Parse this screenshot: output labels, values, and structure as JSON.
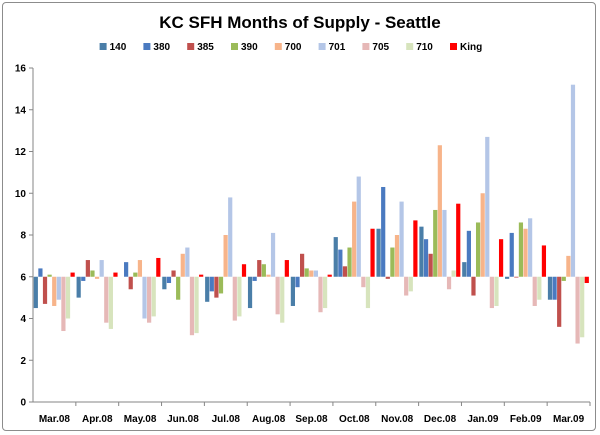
{
  "chart_data": {
    "type": "bar",
    "title": "KC SFH Months of Supply - Seattle",
    "xlabel": "",
    "ylabel": "",
    "ylim": [
      0,
      16
    ],
    "yticks": [
      0,
      2,
      4,
      6,
      8,
      10,
      12,
      14,
      16
    ],
    "baseline": 6,
    "grid": false,
    "legend_position": "top",
    "categories": [
      "Mar.08",
      "Apr.08",
      "May.08",
      "Jun.08",
      "Jul.08",
      "Aug.08",
      "Sep.08",
      "Oct.08",
      "Nov.08",
      "Dec.08",
      "Jan.09",
      "Feb.09",
      "Mar.09"
    ],
    "series": [
      {
        "name": "140",
        "color": "#4a7ea8",
        "values": [
          4.5,
          5.0,
          null,
          5.4,
          4.8,
          4.5,
          4.6,
          7.9,
          8.3,
          8.4,
          6.7,
          5.9,
          4.9
        ]
      },
      {
        "name": "380",
        "color": "#4a7ac0",
        "values": [
          6.4,
          5.8,
          6.7,
          5.7,
          5.3,
          5.8,
          5.5,
          7.3,
          10.3,
          7.8,
          8.2,
          8.1,
          4.9
        ]
      },
      {
        "name": "385",
        "color": "#c0504d",
        "values": [
          4.7,
          6.8,
          5.4,
          6.3,
          5.0,
          6.8,
          7.1,
          6.5,
          5.9,
          7.1,
          5.1,
          6.0,
          3.6
        ]
      },
      {
        "name": "390",
        "color": "#9bbb59",
        "values": [
          6.1,
          6.3,
          6.2,
          4.9,
          5.2,
          6.6,
          6.4,
          7.4,
          7.4,
          9.2,
          8.6,
          8.6,
          5.8
        ]
      },
      {
        "name": "700",
        "color": "#f7b48a",
        "values": [
          4.6,
          5.9,
          6.8,
          7.1,
          8.0,
          6.1,
          6.3,
          9.6,
          8.0,
          12.3,
          10.0,
          8.3,
          7.0
        ]
      },
      {
        "name": "701",
        "color": "#b4c6e7",
        "values": [
          4.9,
          6.8,
          4.0,
          7.4,
          9.8,
          8.1,
          6.3,
          10.8,
          9.6,
          9.2,
          12.7,
          8.8,
          15.2
        ]
      },
      {
        "name": "705",
        "color": "#e6b8b7",
        "values": [
          3.4,
          3.8,
          3.8,
          3.2,
          3.9,
          4.2,
          4.3,
          5.5,
          5.1,
          5.4,
          4.5,
          4.6,
          2.8
        ]
      },
      {
        "name": "710",
        "color": "#d7e4bd",
        "values": [
          4.0,
          3.5,
          4.1,
          3.3,
          4.1,
          3.8,
          4.5,
          4.5,
          5.3,
          6.3,
          4.6,
          4.9,
          3.1
        ]
      },
      {
        "name": "King",
        "color": "#ff0000",
        "values": [
          6.2,
          6.2,
          6.9,
          6.1,
          6.6,
          6.8,
          6.1,
          8.3,
          8.7,
          9.5,
          7.8,
          7.5,
          5.7
        ]
      }
    ]
  }
}
